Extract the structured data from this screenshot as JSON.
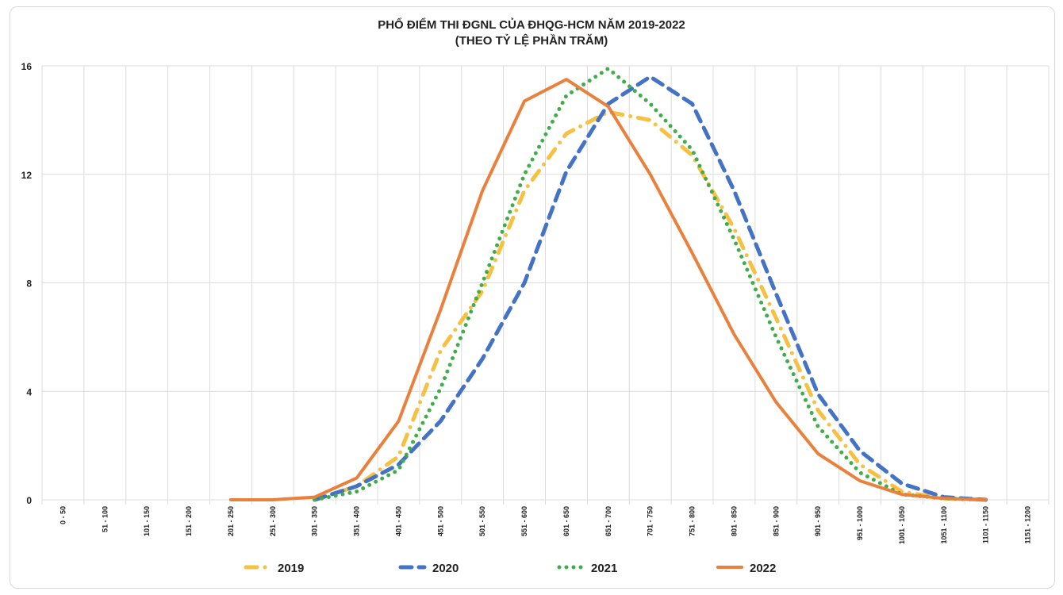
{
  "chart_data": {
    "type": "line",
    "title": "PHỔ ĐIỂM THI ĐGNL CỦA ĐHQG-HCM NĂM 2019-2022",
    "subtitle": "(THEO TỶ LỆ PHẦN TRĂM)",
    "xlabel": "",
    "ylabel": "",
    "ylim": [
      0,
      16
    ],
    "yticks": [
      "0",
      "4",
      "8",
      "12",
      "16"
    ],
    "grid": true,
    "legend_position": "bottom",
    "categories": [
      "0 - 50",
      "51 - 100",
      "101 - 150",
      "151 - 200",
      "201 - 250",
      "251 - 300",
      "301 - 350",
      "351 - 400",
      "401 - 450",
      "451 - 500",
      "501 - 550",
      "551 - 600",
      "601 - 650",
      "651 - 700",
      "701 - 750",
      "751 - 800",
      "801 - 850",
      "851 - 900",
      "901 - 950",
      "951 - 1000",
      "1001 - 1050",
      "1051 - 1100",
      "1101 - 1150",
      "1151 - 1200"
    ],
    "series": [
      {
        "name": "2019",
        "color": "#F6C142",
        "style": "dashdot",
        "values": [
          null,
          null,
          null,
          null,
          null,
          null,
          0,
          0.5,
          1.6,
          5.5,
          7.7,
          11.4,
          13.5,
          14.3,
          14.0,
          12.7,
          10.0,
          6.7,
          3.3,
          1.3,
          0.3,
          0.05,
          0,
          null
        ]
      },
      {
        "name": "2020",
        "color": "#4472C4",
        "style": "dash",
        "values": [
          null,
          null,
          null,
          null,
          null,
          null,
          0,
          0.5,
          1.3,
          2.9,
          5.2,
          8.0,
          12.1,
          14.6,
          15.6,
          14.6,
          11.4,
          7.6,
          3.9,
          1.8,
          0.6,
          0.1,
          0,
          null
        ]
      },
      {
        "name": "2021",
        "color": "#3FAE49",
        "style": "dot",
        "values": [
          null,
          null,
          null,
          null,
          null,
          null,
          0,
          0.3,
          1.1,
          4.1,
          8.0,
          12.0,
          14.9,
          15.9,
          14.6,
          12.9,
          9.6,
          6.0,
          2.7,
          1.0,
          0.2,
          0.05,
          0,
          null
        ]
      },
      {
        "name": "2022",
        "color": "#E9803C",
        "style": "solid",
        "values": [
          null,
          null,
          null,
          null,
          0,
          0,
          0.1,
          0.8,
          2.9,
          7.0,
          11.4,
          14.7,
          15.5,
          14.5,
          12.0,
          9.1,
          6.1,
          3.6,
          1.7,
          0.7,
          0.2,
          0.05,
          0,
          null
        ]
      }
    ]
  }
}
